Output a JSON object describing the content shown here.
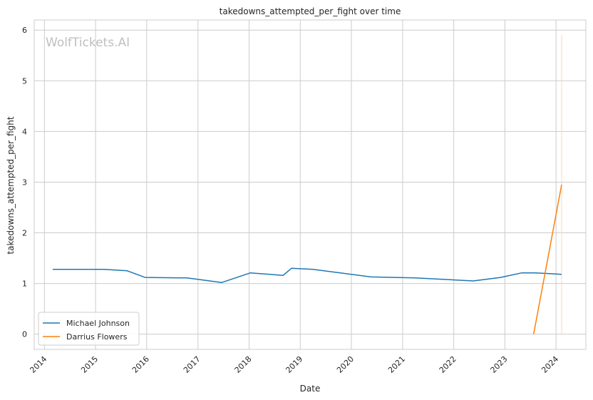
{
  "chart_data": {
    "type": "line",
    "title": "takedowns_attempted_per_fight over time",
    "xlabel": "Date",
    "ylabel": "takedowns_attempted_per_fight",
    "watermark": "WolfTickets.AI",
    "xlim": [
      "2013-10-20",
      "2024-08-01"
    ],
    "ylim": [
      -0.3,
      6.2
    ],
    "x_ticks": [
      "2014",
      "2015",
      "2016",
      "2017",
      "2018",
      "2019",
      "2020",
      "2021",
      "2022",
      "2023",
      "2024"
    ],
    "y_ticks": [
      0,
      1,
      2,
      3,
      4,
      5,
      6
    ],
    "grid": true,
    "legend_position": "lower-left",
    "series": [
      {
        "name": "Michael Johnson",
        "color": "#1f77b4",
        "x": [
          "2014-03-01",
          "2015-03-01",
          "2015-08-15",
          "2015-12-20",
          "2016-10-15",
          "2017-06-20",
          "2018-01-10",
          "2018-09-01",
          "2018-10-30",
          "2019-04-01",
          "2020-05-20",
          "2021-04-01",
          "2022-05-20",
          "2022-12-01",
          "2023-05-01",
          "2023-08-10",
          "2024-02-10"
        ],
        "values": [
          1.28,
          1.28,
          1.25,
          1.12,
          1.11,
          1.02,
          1.21,
          1.16,
          1.3,
          1.28,
          1.13,
          1.11,
          1.05,
          1.12,
          1.21,
          1.21,
          1.18
        ]
      },
      {
        "name": "Darrius Flowers",
        "color": "#ff7f0e",
        "x": [
          "2023-07-25",
          "2024-02-10"
        ],
        "values": [
          0.0,
          2.95
        ]
      }
    ],
    "marker_line": {
      "x": "2024-02-10",
      "y_top": 5.9,
      "color": "#ffd9b0"
    }
  }
}
